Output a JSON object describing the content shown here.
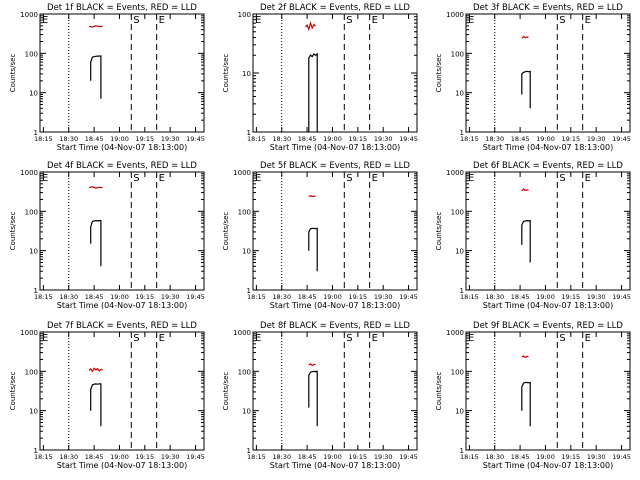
{
  "page": {
    "background": "#ffffff"
  },
  "colors": {
    "events": "#000000",
    "lld": "#cc0000",
    "axes": "#000000"
  },
  "chart_data": [
    {
      "type": "line",
      "title": "Det 1f BLACK = Events, RED = LLD",
      "xlabel": "Start Time (04-Nov-07 18:13:00)",
      "ylabel": "Counts/sec",
      "x_ticks": [
        "18:15",
        "18:30",
        "18:45",
        "19:00",
        "19:15",
        "19:30",
        "19:45"
      ],
      "y_ticks": [
        "1",
        "10",
        "100",
        "1000"
      ],
      "y_scale": "log",
      "ylim": [
        1,
        1000
      ],
      "markers": [
        {
          "label": "E",
          "x": "18:13",
          "style": "dotted"
        },
        {
          "label": "",
          "x": "18:30",
          "style": "dotted"
        },
        {
          "label": "S",
          "x": "19:07",
          "style": "dashed"
        },
        {
          "label": "E",
          "x": "19:22",
          "style": "dashed"
        }
      ],
      "series": [
        {
          "color": "#cc0000",
          "x": [
            "18:42",
            "18:44",
            "18:46",
            "18:48",
            "18:50"
          ],
          "y": [
            480,
            470,
            500,
            475,
            480
          ]
        },
        {
          "color": "#000000",
          "x": [
            "18:43",
            "18:43",
            "18:44",
            "18:45",
            "18:46",
            "18:47",
            "18:48",
            "18:49",
            "18:49",
            "18:49"
          ],
          "y": [
            20,
            60,
            80,
            82,
            84,
            85,
            85,
            86,
            30,
            7
          ]
        }
      ]
    },
    {
      "type": "line",
      "title": "Det 2f BLACK = Events, RED = LLD",
      "xlabel": "Start Time (04-Nov-07 18:13:00)",
      "ylabel": "Counts/sec",
      "x_ticks": [
        "18:15",
        "18:30",
        "18:45",
        "19:00",
        "19:15",
        "19:30",
        "19:45"
      ],
      "y_ticks": [
        "1",
        "10",
        "100"
      ],
      "y_scale": "log",
      "ylim": [
        1,
        100
      ],
      "markers": [
        {
          "label": "E",
          "x": "18:13",
          "style": "dotted"
        },
        {
          "label": "",
          "x": "18:30",
          "style": "dotted"
        },
        {
          "label": "S",
          "x": "19:07",
          "style": "dashed"
        },
        {
          "label": "E",
          "x": "19:22",
          "style": "dashed"
        }
      ],
      "series": [
        {
          "color": "#cc0000",
          "x": [
            "18:44",
            "18:45",
            "18:46",
            "18:47",
            "18:48",
            "18:49",
            "18:50"
          ],
          "y": [
            60,
            65,
            55,
            70,
            58,
            66,
            62
          ]
        },
        {
          "color": "#000000",
          "x": [
            "18:46",
            "18:46",
            "18:47",
            "18:48",
            "18:49",
            "18:50",
            "18:51",
            "18:51",
            "18:51"
          ],
          "y": [
            1,
            18,
            20,
            19,
            21,
            20,
            21,
            12,
            1
          ]
        }
      ]
    },
    {
      "type": "line",
      "title": "Det 3f BLACK = Events, RED = LLD",
      "xlabel": "Start Time (04-Nov-07 18:13:00)",
      "ylabel": "Counts/sec",
      "x_ticks": [
        "18:15",
        "18:30",
        "18:45",
        "19:00",
        "19:15",
        "19:30",
        "19:45"
      ],
      "y_ticks": [
        "1",
        "10",
        "100",
        "1000"
      ],
      "y_scale": "log",
      "ylim": [
        1,
        1000
      ],
      "markers": [
        {
          "label": "E",
          "x": "18:13",
          "style": "dotted"
        },
        {
          "label": "",
          "x": "18:30",
          "style": "dotted"
        },
        {
          "label": "S",
          "x": "19:07",
          "style": "dashed"
        },
        {
          "label": "E",
          "x": "19:22",
          "style": "dashed"
        }
      ],
      "series": [
        {
          "color": "#cc0000",
          "x": [
            "18:46",
            "18:47",
            "18:48",
            "18:49",
            "18:50"
          ],
          "y": [
            240,
            270,
            250,
            260,
            255
          ]
        },
        {
          "color": "#000000",
          "x": [
            "18:46",
            "18:46",
            "18:47",
            "18:48",
            "18:49",
            "18:50",
            "18:51",
            "18:51",
            "18:51"
          ],
          "y": [
            9,
            30,
            33,
            34,
            35,
            34,
            35,
            15,
            4
          ]
        }
      ]
    },
    {
      "type": "line",
      "title": "Det 4f BLACK = Events, RED = LLD",
      "xlabel": "Start Time (04-Nov-07 18:13:00)",
      "ylabel": "Counts/sec",
      "x_ticks": [
        "18:15",
        "18:30",
        "18:45",
        "19:00",
        "19:15",
        "19:30",
        "19:45"
      ],
      "y_ticks": [
        "1",
        "10",
        "100",
        "1000"
      ],
      "y_scale": "log",
      "ylim": [
        1,
        1000
      ],
      "markers": [
        {
          "label": "E",
          "x": "18:13",
          "style": "dotted"
        },
        {
          "label": "",
          "x": "18:30",
          "style": "dotted"
        },
        {
          "label": "S",
          "x": "19:07",
          "style": "dashed"
        },
        {
          "label": "E",
          "x": "19:22",
          "style": "dashed"
        }
      ],
      "series": [
        {
          "color": "#cc0000",
          "x": [
            "18:42",
            "18:44",
            "18:46",
            "18:48",
            "18:50"
          ],
          "y": [
            400,
            420,
            390,
            410,
            400
          ]
        },
        {
          "color": "#000000",
          "x": [
            "18:43",
            "18:43",
            "18:44",
            "18:45",
            "18:46",
            "18:47",
            "18:48",
            "18:49",
            "18:49",
            "18:49"
          ],
          "y": [
            15,
            40,
            55,
            57,
            58,
            57,
            58,
            58,
            20,
            4
          ]
        }
      ]
    },
    {
      "type": "line",
      "title": "Det 5f BLACK = Events, RED = LLD",
      "xlabel": "Start Time (04-Nov-07 18:13:00)",
      "ylabel": "Counts/sec",
      "x_ticks": [
        "18:15",
        "18:30",
        "18:45",
        "19:00",
        "19:15",
        "19:30",
        "19:45"
      ],
      "y_ticks": [
        "1",
        "10",
        "100",
        "1000"
      ],
      "y_scale": "log",
      "ylim": [
        1,
        1000
      ],
      "markers": [
        {
          "label": "E",
          "x": "18:13",
          "style": "dotted"
        },
        {
          "label": "",
          "x": "18:30",
          "style": "dotted"
        },
        {
          "label": "S",
          "x": "19:07",
          "style": "dashed"
        },
        {
          "label": "E",
          "x": "19:22",
          "style": "dashed"
        }
      ],
      "series": [
        {
          "color": "#cc0000",
          "x": [
            "18:46",
            "18:47",
            "18:48",
            "18:49",
            "18:50"
          ],
          "y": [
            240,
            250,
            235,
            245,
            240
          ]
        },
        {
          "color": "#000000",
          "x": [
            "18:46",
            "18:46",
            "18:47",
            "18:48",
            "18:49",
            "18:50",
            "18:51",
            "18:51",
            "18:51"
          ],
          "y": [
            10,
            30,
            36,
            37,
            37,
            36,
            37,
            15,
            3
          ]
        }
      ]
    },
    {
      "type": "line",
      "title": "Det 6f BLACK = Events, RED = LLD",
      "xlabel": "Start Time (04-Nov-07 18:13:00)",
      "ylabel": "Counts/sec",
      "x_ticks": [
        "18:15",
        "18:30",
        "18:45",
        "19:00",
        "19:15",
        "19:30",
        "19:45"
      ],
      "y_ticks": [
        "1",
        "10",
        "100",
        "1000"
      ],
      "y_scale": "log",
      "ylim": [
        1,
        1000
      ],
      "markers": [
        {
          "label": "E",
          "x": "18:13",
          "style": "dotted"
        },
        {
          "label": "",
          "x": "18:30",
          "style": "dotted"
        },
        {
          "label": "S",
          "x": "19:07",
          "style": "dashed"
        },
        {
          "label": "E",
          "x": "19:22",
          "style": "dashed"
        }
      ],
      "series": [
        {
          "color": "#cc0000",
          "x": [
            "18:46",
            "18:47",
            "18:48",
            "18:49",
            "18:50"
          ],
          "y": [
            330,
            370,
            340,
            350,
            345
          ]
        },
        {
          "color": "#000000",
          "x": [
            "18:46",
            "18:46",
            "18:47",
            "18:48",
            "18:49",
            "18:50",
            "18:51",
            "18:51",
            "18:51"
          ],
          "y": [
            14,
            45,
            55,
            57,
            58,
            57,
            58,
            20,
            5
          ]
        }
      ]
    },
    {
      "type": "line",
      "title": "Det 7f BLACK = Events, RED = LLD",
      "xlabel": "Start Time (04-Nov-07 18:13:00)",
      "ylabel": "Counts/sec",
      "x_ticks": [
        "18:15",
        "18:30",
        "18:45",
        "19:00",
        "19:15",
        "19:30",
        "19:45"
      ],
      "y_ticks": [
        "1",
        "10",
        "100",
        "1000"
      ],
      "y_scale": "log",
      "ylim": [
        1,
        1000
      ],
      "markers": [
        {
          "label": "E",
          "x": "18:13",
          "style": "dotted"
        },
        {
          "label": "",
          "x": "18:30",
          "style": "dotted"
        },
        {
          "label": "S",
          "x": "19:07",
          "style": "dashed"
        },
        {
          "label": "E",
          "x": "19:22",
          "style": "dashed"
        }
      ],
      "series": [
        {
          "color": "#cc0000",
          "x": [
            "18:42",
            "18:43",
            "18:44",
            "18:45",
            "18:46",
            "18:47",
            "18:48",
            "18:49",
            "18:50"
          ],
          "y": [
            105,
            115,
            100,
            120,
            108,
            118,
            102,
            112,
            110
          ]
        },
        {
          "color": "#000000",
          "x": [
            "18:43",
            "18:43",
            "18:44",
            "18:45",
            "18:46",
            "18:47",
            "18:48",
            "18:49",
            "18:49",
            "18:49"
          ],
          "y": [
            10,
            35,
            45,
            47,
            48,
            47,
            48,
            48,
            18,
            4
          ]
        }
      ]
    },
    {
      "type": "line",
      "title": "Det 8f BLACK = Events, RED = LLD",
      "xlabel": "Start Time (04-Nov-07 18:13:00)",
      "ylabel": "Counts/sec",
      "x_ticks": [
        "18:15",
        "18:30",
        "18:45",
        "19:00",
        "19:15",
        "19:30",
        "19:45"
      ],
      "y_ticks": [
        "1",
        "10",
        "100",
        "1000"
      ],
      "y_scale": "log",
      "ylim": [
        1,
        1000
      ],
      "markers": [
        {
          "label": "E",
          "x": "18:13",
          "style": "dotted"
        },
        {
          "label": "",
          "x": "18:30",
          "style": "dotted"
        },
        {
          "label": "S",
          "x": "19:07",
          "style": "dashed"
        },
        {
          "label": "E",
          "x": "19:22",
          "style": "dashed"
        }
      ],
      "series": [
        {
          "color": "#cc0000",
          "x": [
            "18:46",
            "18:47",
            "18:48",
            "18:49",
            "18:50"
          ],
          "y": [
            145,
            155,
            140,
            150,
            148
          ]
        },
        {
          "color": "#000000",
          "x": [
            "18:46",
            "18:46",
            "18:47",
            "18:48",
            "18:49",
            "18:50",
            "18:51",
            "18:51",
            "18:51"
          ],
          "y": [
            12,
            80,
            95,
            98,
            100,
            98,
            100,
            30,
            4
          ]
        }
      ]
    },
    {
      "type": "line",
      "title": "Det 9f BLACK = Events, RED = LLD",
      "xlabel": "Start Time (04-Nov-07 18:13:00)",
      "ylabel": "Counts/sec",
      "x_ticks": [
        "18:15",
        "18:30",
        "18:45",
        "19:00",
        "19:15",
        "19:30",
        "19:45"
      ],
      "y_ticks": [
        "1",
        "10",
        "100",
        "1000"
      ],
      "y_scale": "log",
      "ylim": [
        1,
        1000
      ],
      "markers": [
        {
          "label": "E",
          "x": "18:13",
          "style": "dotted"
        },
        {
          "label": "",
          "x": "18:30",
          "style": "dotted"
        },
        {
          "label": "S",
          "x": "19:07",
          "style": "dashed"
        },
        {
          "label": "E",
          "x": "19:22",
          "style": "dashed"
        }
      ],
      "series": [
        {
          "color": "#cc0000",
          "x": [
            "18:46",
            "18:47",
            "18:48",
            "18:49",
            "18:50"
          ],
          "y": [
            230,
            245,
            225,
            240,
            235
          ]
        },
        {
          "color": "#000000",
          "x": [
            "18:46",
            "18:46",
            "18:47",
            "18:48",
            "18:49",
            "18:50",
            "18:51",
            "18:51",
            "18:51"
          ],
          "y": [
            10,
            40,
            50,
            52,
            52,
            51,
            52,
            18,
            4
          ]
        }
      ]
    }
  ]
}
